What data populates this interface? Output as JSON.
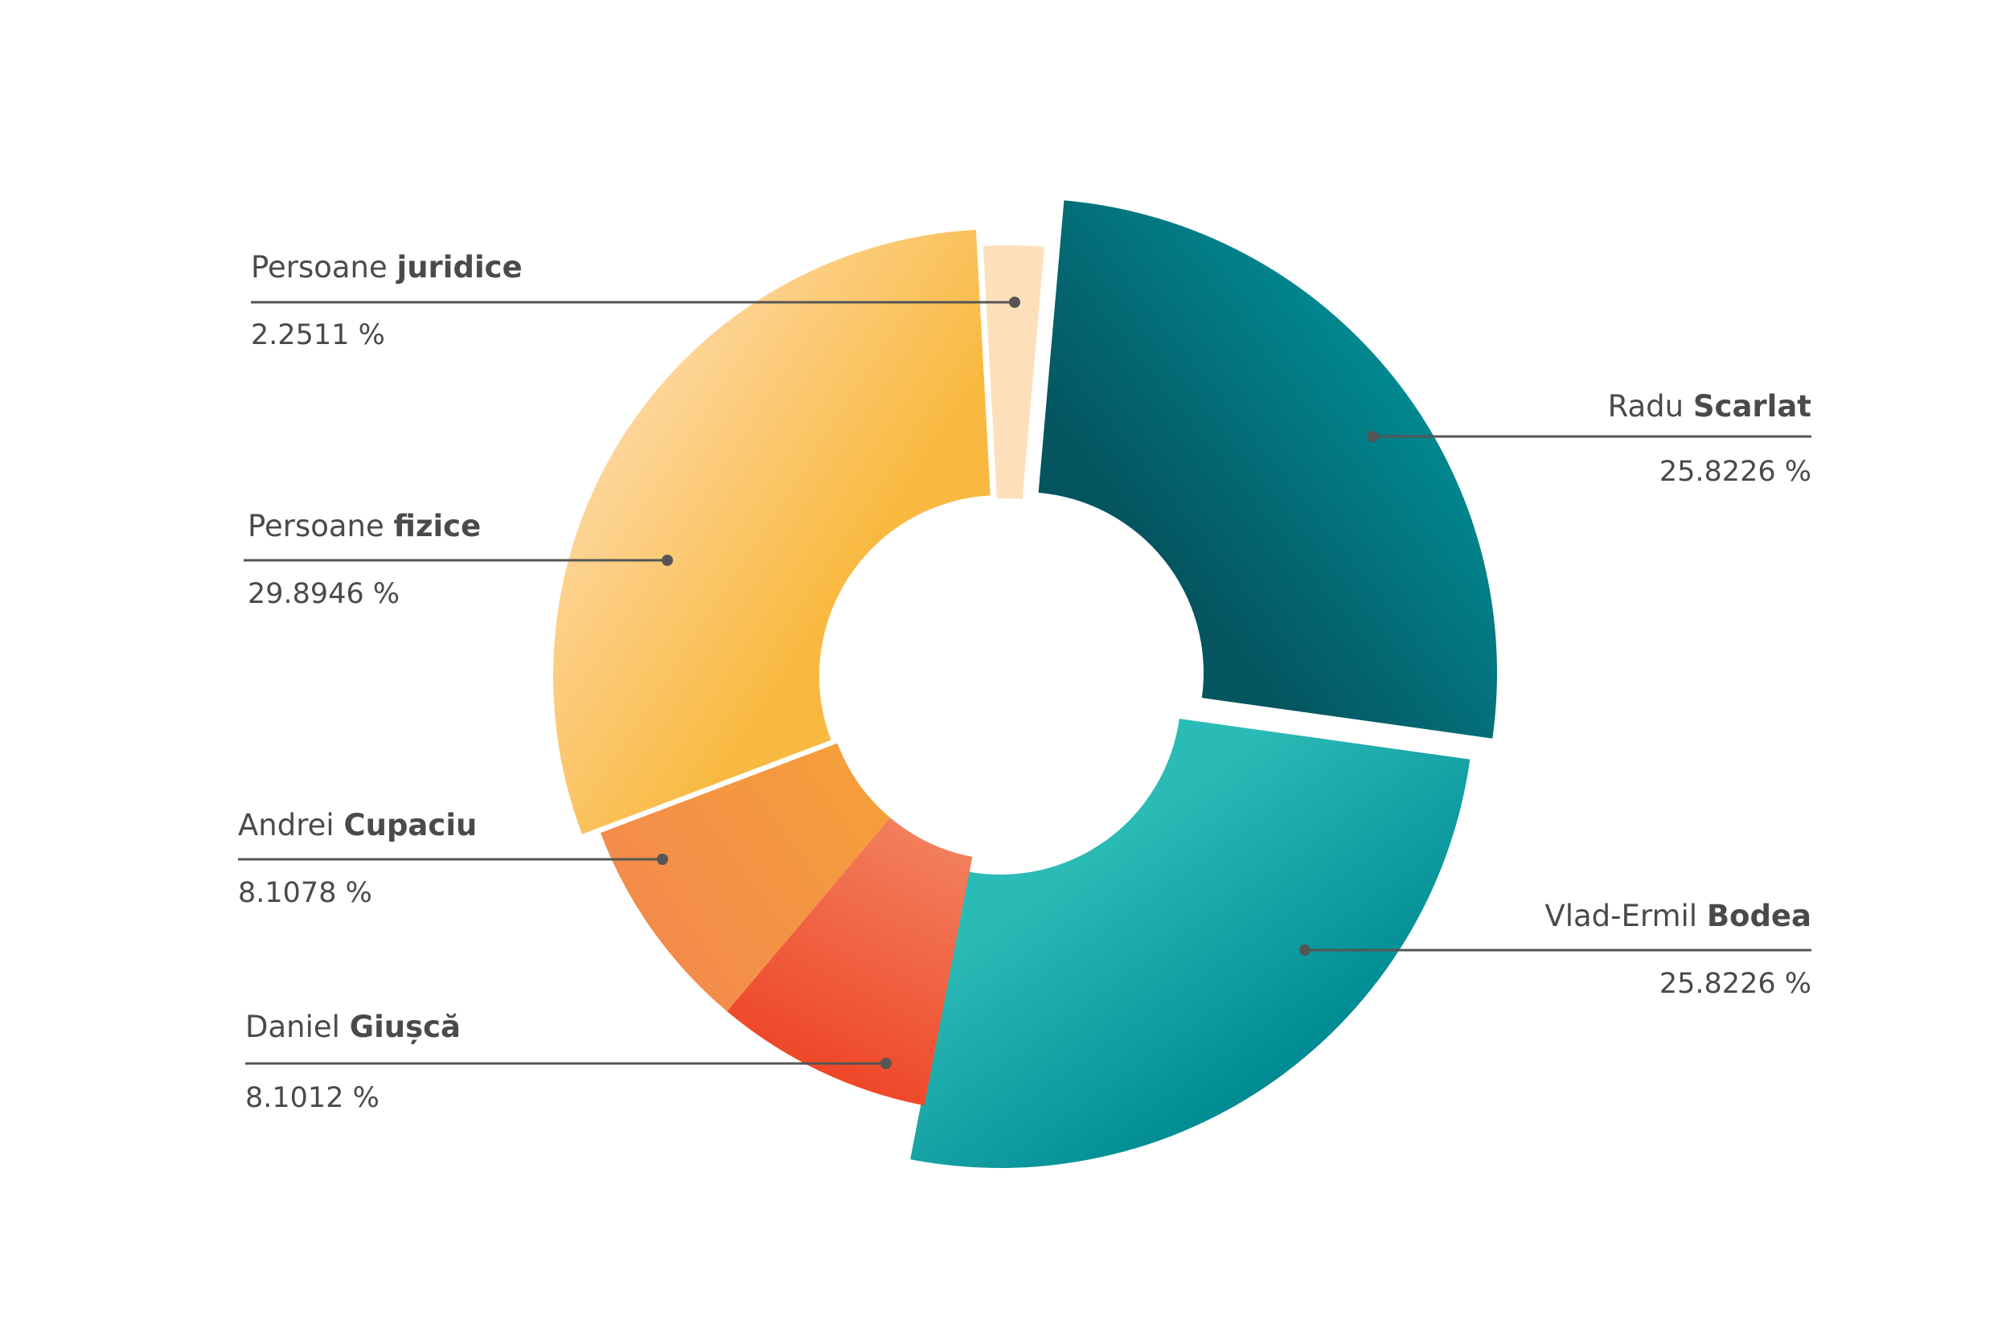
{
  "chart_data": {
    "type": "pie",
    "variant": "donut",
    "title": "",
    "slices": [
      {
        "first": "Radu",
        "last": "Scarlat",
        "value": 25.8226,
        "label": "25.8226 %",
        "colors": [
          "#045560",
          "#028890"
        ]
      },
      {
        "first": "Vlad-Ermil",
        "last": "Bodea",
        "value": 25.8226,
        "label": "25.8226 %",
        "colors": [
          "#2bbbb6",
          "#008a93"
        ]
      },
      {
        "first": "Daniel",
        "last": "Giușcă",
        "value": 8.1012,
        "label": "8.1012 %",
        "colors": [
          "#f27e5c",
          "#ee4728"
        ]
      },
      {
        "first": "Andrei",
        "last": "Cupaciu",
        "value": 8.1078,
        "label": "8.1078 %",
        "colors": [
          "#f59e3c",
          "#f48b4b"
        ]
      },
      {
        "first": "Persoane",
        "last": "fizice",
        "value": 29.8946,
        "label": "29.8946 %",
        "colors": [
          "#f9b941",
          "#fdd598"
        ]
      },
      {
        "first": "Persoane",
        "last": "juridice",
        "value": 2.2511,
        "label": "2.2511 %",
        "colors": [
          "#fde0bb",
          "#fde0bb"
        ]
      }
    ]
  }
}
